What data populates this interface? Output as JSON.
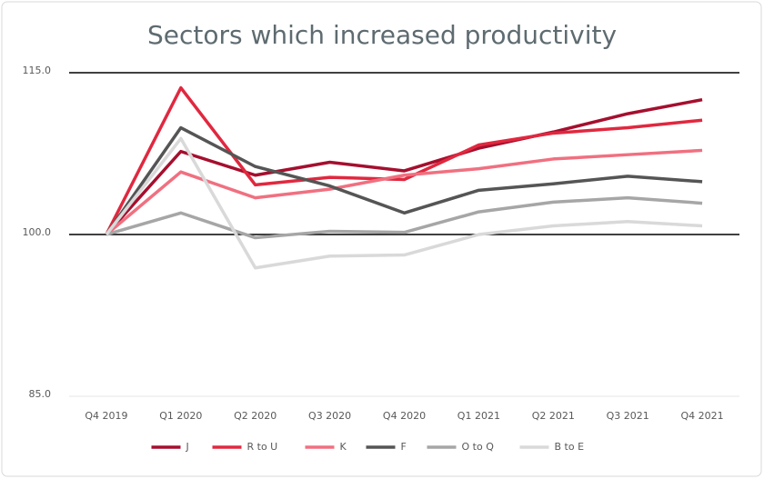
{
  "chart_data": {
    "type": "line",
    "title": "Sectors which increased productivity",
    "categories": [
      "Q4 2019",
      "Q1 2020",
      "Q2 2020",
      "Q3 2020",
      "Q4 2020",
      "Q1 2021",
      "Q2 2021",
      "Q3 2021",
      "Q4 2021"
    ],
    "series": [
      {
        "name": "J",
        "color": "#a50f2e",
        "values": [
          100,
          107.7,
          105.5,
          106.7,
          105.9,
          108.0,
          109.5,
          111.2,
          112.5
        ]
      },
      {
        "name": "R to U",
        "color": "#e0283f",
        "values": [
          100,
          113.6,
          104.6,
          105.3,
          105.1,
          108.3,
          109.4,
          109.9,
          110.6
        ]
      },
      {
        "name": "K",
        "color": "#f07080",
        "values": [
          100,
          105.8,
          103.4,
          104.2,
          105.5,
          106.1,
          107.0,
          107.4,
          107.8
        ]
      },
      {
        "name": "F",
        "color": "#555555",
        "values": [
          100,
          109.9,
          106.3,
          104.5,
          102.0,
          104.1,
          104.7,
          105.4,
          104.9
        ]
      },
      {
        "name": "O to Q",
        "color": "#a6a6a6",
        "values": [
          100,
          102.0,
          99.7,
          100.3,
          100.2,
          102.1,
          103.0,
          103.4,
          102.9
        ]
      },
      {
        "name": "B to E",
        "color": "#d9d9d9",
        "values": [
          100,
          108.9,
          96.9,
          98.0,
          98.1,
          100.0,
          100.8,
          101.2,
          100.8
        ]
      }
    ],
    "ylim": [
      85,
      115
    ],
    "yticks": [
      {
        "value": 85,
        "label": "85.0"
      },
      {
        "value": 100,
        "label": "100.0"
      },
      {
        "value": 115,
        "label": "115.0"
      }
    ],
    "baseline": 100,
    "grid": true,
    "legend": "bottom"
  }
}
